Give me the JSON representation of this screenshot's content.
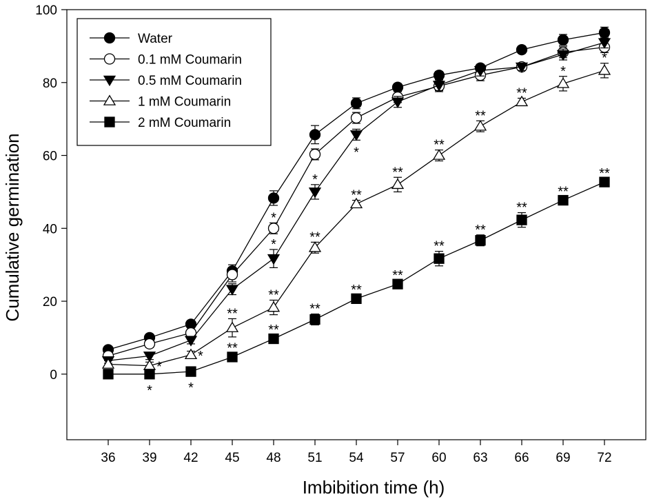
{
  "chart_data": {
    "type": "line",
    "xlabel": "Imbibition time (h)",
    "ylabel": "Cumulative germination",
    "x": [
      36,
      39,
      42,
      45,
      48,
      51,
      54,
      57,
      60,
      63,
      66,
      69,
      72
    ],
    "xlim": [
      33,
      75
    ],
    "ylim": [
      -18,
      100
    ],
    "yticks": [
      0,
      20,
      40,
      60,
      80,
      100
    ],
    "legend_position": "top-left",
    "series": [
      {
        "name": "Water",
        "marker": "circle-filled",
        "values": [
          6.7,
          10,
          13.7,
          28.3,
          48.3,
          65.7,
          74.3,
          78.7,
          82,
          84,
          89,
          91.7,
          93.7
        ],
        "errors": [
          0.7,
          1,
          1,
          1.7,
          2,
          2.5,
          1.5,
          1,
          1,
          1,
          1,
          1.5,
          1.5
        ],
        "sig": [
          "",
          "",
          "",
          "",
          "",
          "",
          "",
          "",
          "",
          "",
          "",
          "",
          ""
        ]
      },
      {
        "name": "0.1 mM Coumarin",
        "marker": "circle-open",
        "values": [
          5,
          8.3,
          11.3,
          27.3,
          40,
          60.3,
          70.3,
          76,
          79,
          82,
          84.3,
          88.3,
          89.7
        ],
        "errors": [
          1,
          1,
          1.5,
          2,
          1.5,
          1.5,
          1.5,
          1.5,
          1.5,
          1.5,
          1,
          1.5,
          1.5
        ],
        "sig": [
          "",
          "",
          "",
          "",
          "*",
          "",
          "",
          "",
          "",
          "",
          "",
          "",
          ""
        ]
      },
      {
        "name": "0.5 mM Coumarin",
        "marker": "triangle-down-filled",
        "values": [
          3.7,
          5,
          9.3,
          23.3,
          31.7,
          50,
          65.7,
          74.7,
          79.3,
          83.3,
          84.3,
          87.7,
          91
        ],
        "errors": [
          0.7,
          1,
          1,
          1.5,
          2.5,
          2,
          1.5,
          1.5,
          1.5,
          1.5,
          1,
          1.5,
          1.5
        ],
        "sig": [
          "",
          "",
          "",
          "",
          "*",
          "*",
          "*",
          "",
          "",
          "",
          "",
          "",
          ""
        ]
      },
      {
        "name": "1 mM Coumarin",
        "marker": "triangle-up-open",
        "values": [
          2.7,
          2.3,
          5.3,
          12.7,
          18.3,
          34.7,
          46.7,
          52,
          60,
          68,
          74.7,
          79.7,
          83.3
        ],
        "errors": [
          1,
          1,
          1,
          2.5,
          2,
          1.5,
          1,
          2,
          1.5,
          1.5,
          1,
          2,
          2
        ],
        "sig": [
          "",
          "*",
          "*",
          "**",
          "**",
          "**",
          "**",
          "**",
          "**",
          "**",
          "**",
          "*",
          "*"
        ]
      },
      {
        "name": "2 mM Coumarin",
        "marker": "square-filled",
        "values": [
          0,
          0,
          0.7,
          4.7,
          9.7,
          15,
          20.7,
          24.7,
          31.7,
          36.7,
          42.3,
          47.7,
          52.7
        ],
        "errors": [
          0.5,
          0.5,
          0.5,
          1,
          1,
          1.5,
          1,
          1,
          2,
          1.5,
          2,
          1,
          1
        ],
        "sig": [
          "",
          "*",
          "*",
          "**",
          "**",
          "**",
          "**",
          "**",
          "**",
          "**",
          "**",
          "**",
          "**"
        ]
      }
    ]
  }
}
